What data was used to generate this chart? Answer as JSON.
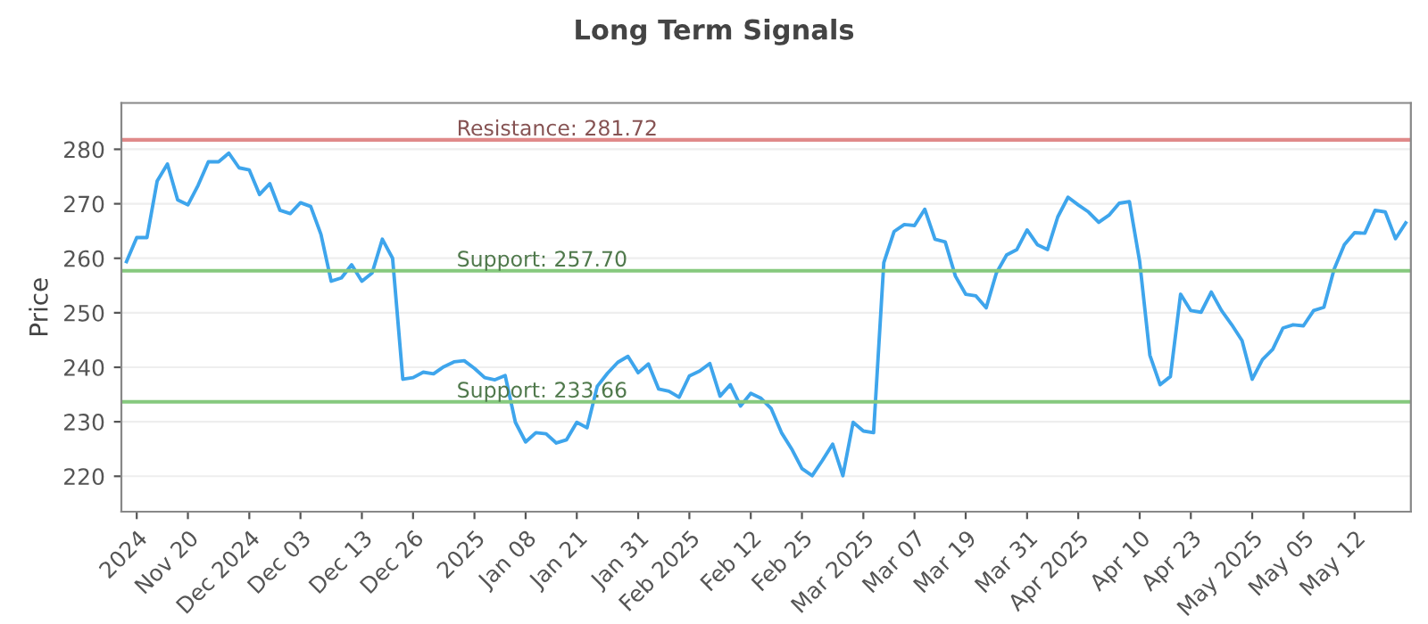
{
  "chart_data": {
    "type": "line",
    "title": "Long Term Signals",
    "ylabel": "Price",
    "categories": [
      null,
      "2024",
      null,
      null,
      null,
      null,
      "Nov 20",
      null,
      null,
      null,
      null,
      null,
      "Dec 2024",
      null,
      null,
      null,
      null,
      "Dec 03",
      null,
      null,
      null,
      null,
      null,
      "Dec 13",
      null,
      null,
      null,
      null,
      "Dec 26",
      null,
      null,
      null,
      null,
      null,
      "2025",
      null,
      null,
      null,
      null,
      "Jan 08",
      null,
      null,
      null,
      null,
      "Jan 21",
      null,
      null,
      null,
      null,
      null,
      "Jan 31",
      null,
      null,
      null,
      null,
      "Feb 2025",
      null,
      null,
      null,
      null,
      null,
      "Feb 12",
      null,
      null,
      null,
      null,
      "Feb 25",
      null,
      null,
      null,
      null,
      null,
      "Mar 2025",
      null,
      null,
      null,
      null,
      "Mar 07",
      null,
      null,
      null,
      null,
      "Mar 19",
      null,
      null,
      null,
      null,
      null,
      "Mar 31",
      null,
      null,
      null,
      null,
      "Apr 2025",
      null,
      null,
      null,
      null,
      null,
      "Apr 10",
      null,
      null,
      null,
      null,
      "Apr 23",
      null,
      null,
      null,
      null,
      null,
      "May 2025",
      null,
      null,
      null,
      null,
      "May 05",
      null,
      null,
      null,
      null,
      "May 12",
      null,
      null,
      null,
      null,
      null
    ],
    "series": [
      {
        "color": "#3ea5ec",
        "values": [
          259.4,
          263.8,
          263.8,
          274.2,
          277.3,
          270.7,
          269.8,
          273.4,
          277.7,
          277.7,
          279.3,
          276.6,
          276.2,
          271.7,
          273.7,
          268.8,
          268.2,
          270.2,
          269.5,
          264.4,
          255.8,
          256.4,
          258.8,
          255.8,
          257.3,
          263.5,
          260,
          237.8,
          238.1,
          239.1,
          238.8,
          240.1,
          241,
          241.2,
          239.8,
          238.1,
          237.7,
          238.5,
          229.9,
          226.3,
          228,
          227.8,
          226.1,
          226.7,
          229.9,
          228.9,
          236.5,
          238.9,
          240.9,
          242,
          239,
          240.6,
          236,
          235.6,
          234.5,
          238.4,
          239.3,
          240.7,
          234.7,
          236.8,
          232.9,
          235.2,
          234.3,
          232.4,
          228,
          225,
          221.4,
          220.1,
          222.9,
          225.9,
          220.1,
          229.9,
          228.3,
          228,
          259.2,
          264.9,
          266.2,
          266,
          269,
          263.5,
          263,
          256.7,
          253.4,
          253.1,
          250.9,
          257.3,
          260.6,
          261.6,
          265.2,
          262.5,
          261.6,
          267.6,
          271.2,
          269.8,
          268.5,
          266.6,
          267.9,
          270.1,
          270.4,
          259.4,
          242.2,
          236.8,
          238.3,
          253.4,
          250.4,
          250.1,
          253.8,
          250.4,
          247.8,
          244.9,
          237.8,
          241.4,
          243.3,
          247.2,
          247.8,
          247.6,
          250.4,
          251,
          258,
          262.5,
          264.7,
          264.6,
          268.8,
          268.5,
          263.6,
          266.5
        ]
      }
    ],
    "ylim": [
      213.5,
      288.5
    ],
    "yticks": [
      220,
      230,
      240,
      250,
      260,
      270,
      280
    ],
    "grid": "y",
    "ref_lines": [
      {
        "axis": "y",
        "value": 281.72,
        "label": "Resistance: 281.72",
        "color": "#e08a8a"
      },
      {
        "axis": "y",
        "value": 257.7,
        "label": "Support: 257.70",
        "color": "#86c97e"
      },
      {
        "axis": "y",
        "value": 233.66,
        "label": "Support: 233.66",
        "color": "#86c97e"
      }
    ]
  }
}
